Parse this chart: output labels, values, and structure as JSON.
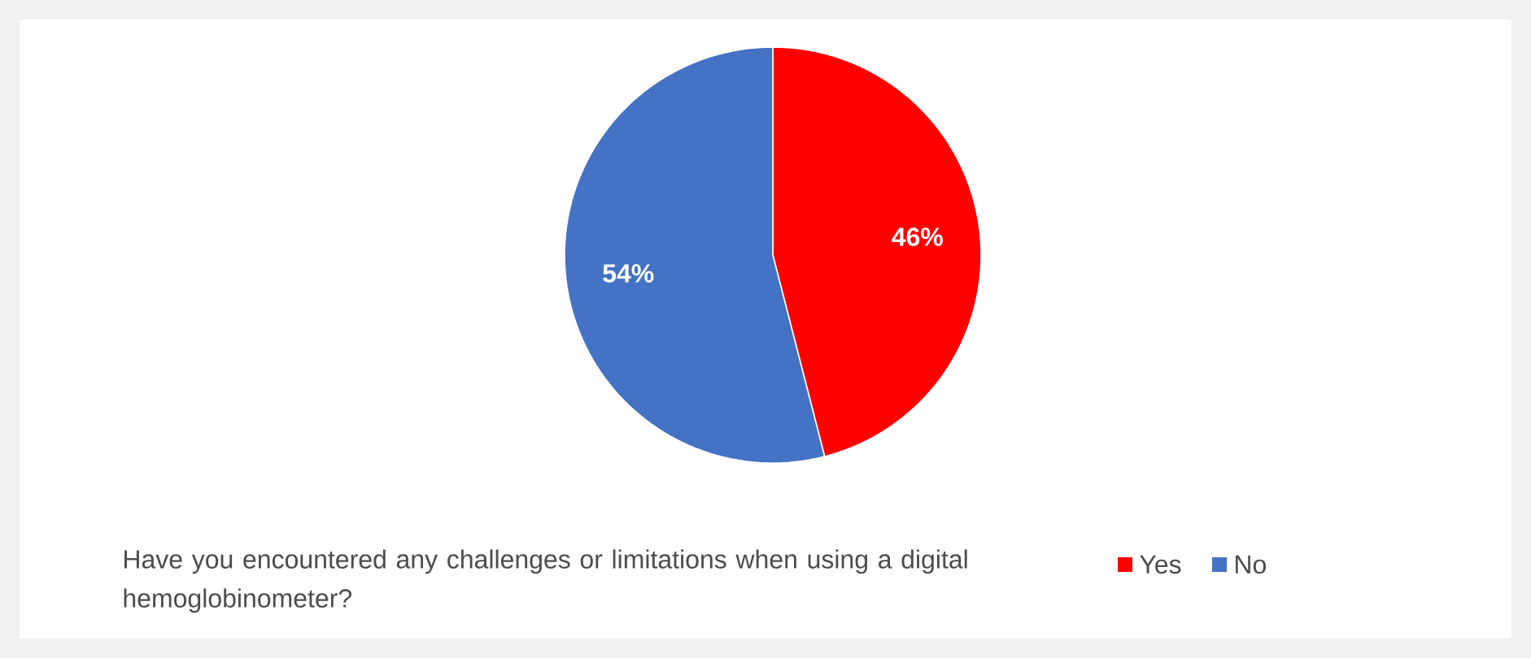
{
  "chart_data": {
    "type": "pie",
    "legend_title": "Have you encountered any challenges or limitations when using a digital hemoglobinometer?",
    "categories": [
      "Yes",
      "No"
    ],
    "values": [
      46,
      54
    ],
    "value_labels": [
      "46%",
      "54%"
    ],
    "colors": [
      "#ff0000",
      "#4472c4"
    ],
    "legend": "bottom"
  }
}
